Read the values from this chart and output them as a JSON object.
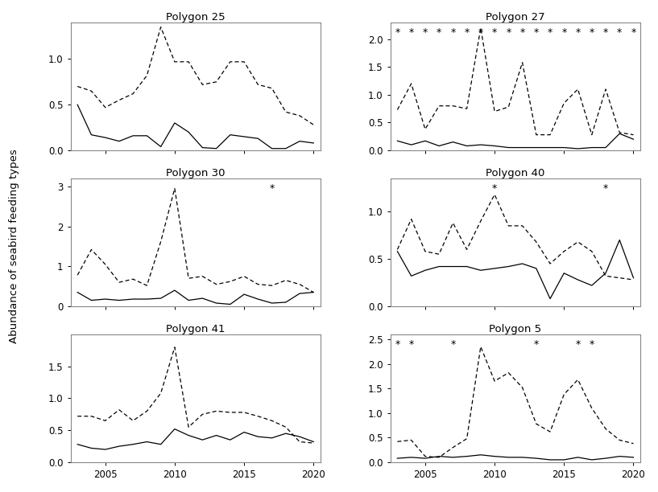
{
  "subplots": [
    {
      "title": "Polygon 25",
      "years": [
        2003,
        2004,
        2005,
        2006,
        2007,
        2008,
        2009,
        2010,
        2011,
        2012,
        2013,
        2014,
        2015,
        2016,
        2017,
        2018,
        2019,
        2020
      ],
      "diving": [
        0.5,
        0.17,
        0.14,
        0.1,
        0.16,
        0.16,
        0.04,
        0.3,
        0.2,
        0.03,
        0.02,
        0.17,
        0.15,
        0.13,
        0.02,
        0.02,
        0.1,
        0.08
      ],
      "surface": [
        0.7,
        0.65,
        0.47,
        0.55,
        0.62,
        0.82,
        1.35,
        0.97,
        0.97,
        0.72,
        0.75,
        0.97,
        0.97,
        0.72,
        0.68,
        0.42,
        0.38,
        0.28
      ],
      "star_years": [],
      "ylim": [
        0,
        1.4
      ],
      "yticks": [
        0.0,
        0.5,
        1.0
      ]
    },
    {
      "title": "Polygon 27",
      "years": [
        2003,
        2004,
        2005,
        2006,
        2007,
        2008,
        2009,
        2010,
        2011,
        2012,
        2013,
        2014,
        2015,
        2016,
        2017,
        2018,
        2019,
        2020
      ],
      "diving": [
        0.17,
        0.1,
        0.17,
        0.08,
        0.15,
        0.08,
        0.1,
        0.08,
        0.05,
        0.05,
        0.05,
        0.05,
        0.05,
        0.03,
        0.05,
        0.05,
        0.3,
        0.2
      ],
      "surface": [
        0.73,
        1.2,
        0.38,
        0.8,
        0.8,
        0.75,
        2.2,
        0.7,
        0.78,
        1.58,
        0.28,
        0.28,
        0.85,
        1.1,
        0.28,
        1.1,
        0.32,
        0.28
      ],
      "star_years": [
        2003,
        2004,
        2005,
        2006,
        2007,
        2008,
        2009,
        2010,
        2011,
        2012,
        2013,
        2014,
        2015,
        2016,
        2017,
        2018,
        2019,
        2020
      ],
      "ylim": [
        0,
        2.3
      ],
      "yticks": [
        0.0,
        0.5,
        1.0,
        1.5,
        2.0
      ]
    },
    {
      "title": "Polygon 30",
      "years": [
        2003,
        2004,
        2005,
        2006,
        2007,
        2008,
        2009,
        2010,
        2011,
        2012,
        2013,
        2014,
        2015,
        2016,
        2017,
        2018,
        2019,
        2020
      ],
      "diving": [
        0.35,
        0.15,
        0.18,
        0.15,
        0.18,
        0.18,
        0.2,
        0.4,
        0.15,
        0.2,
        0.08,
        0.05,
        0.3,
        0.18,
        0.08,
        0.1,
        0.32,
        0.35
      ],
      "surface": [
        0.78,
        1.42,
        1.05,
        0.6,
        0.68,
        0.52,
        1.62,
        2.95,
        0.7,
        0.75,
        0.55,
        0.62,
        0.75,
        0.55,
        0.52,
        0.65,
        0.55,
        0.35
      ],
      "star_years": [
        2017
      ],
      "ylim": [
        0,
        3.2
      ],
      "yticks": [
        0,
        1,
        2,
        3
      ]
    },
    {
      "title": "Polygon 40",
      "years": [
        2003,
        2004,
        2005,
        2006,
        2007,
        2008,
        2009,
        2010,
        2011,
        2012,
        2013,
        2014,
        2015,
        2016,
        2017,
        2018,
        2019,
        2020
      ],
      "diving": [
        0.58,
        0.32,
        0.38,
        0.42,
        0.42,
        0.42,
        0.38,
        0.4,
        0.42,
        0.45,
        0.4,
        0.08,
        0.35,
        0.28,
        0.22,
        0.35,
        0.7,
        0.3
      ],
      "surface": [
        0.6,
        0.92,
        0.58,
        0.55,
        0.88,
        0.6,
        0.9,
        1.18,
        0.85,
        0.85,
        0.68,
        0.45,
        0.58,
        0.68,
        0.58,
        0.32,
        0.3,
        0.28
      ],
      "star_years": [
        2010,
        2018
      ],
      "ylim": [
        0,
        1.35
      ],
      "yticks": [
        0.0,
        0.5,
        1.0
      ]
    },
    {
      "title": "Polygon 41",
      "years": [
        2003,
        2004,
        2005,
        2006,
        2007,
        2008,
        2009,
        2010,
        2011,
        2012,
        2013,
        2014,
        2015,
        2016,
        2017,
        2018,
        2019,
        2020
      ],
      "diving": [
        0.28,
        0.22,
        0.2,
        0.25,
        0.28,
        0.32,
        0.28,
        0.52,
        0.42,
        0.35,
        0.42,
        0.35,
        0.47,
        0.4,
        0.38,
        0.45,
        0.4,
        0.32
      ],
      "surface": [
        0.72,
        0.72,
        0.65,
        0.82,
        0.65,
        0.8,
        1.08,
        1.8,
        0.55,
        0.75,
        0.8,
        0.78,
        0.78,
        0.72,
        0.65,
        0.55,
        0.32,
        0.3
      ],
      "star_years": [],
      "ylim": [
        0,
        2.0
      ],
      "yticks": [
        0.0,
        0.5,
        1.0,
        1.5
      ]
    },
    {
      "title": "Polygon 5",
      "years": [
        2003,
        2004,
        2005,
        2006,
        2007,
        2008,
        2009,
        2010,
        2011,
        2012,
        2013,
        2014,
        2015,
        2016,
        2017,
        2018,
        2019,
        2020
      ],
      "diving": [
        0.08,
        0.1,
        0.08,
        0.12,
        0.1,
        0.12,
        0.15,
        0.12,
        0.1,
        0.1,
        0.08,
        0.05,
        0.05,
        0.1,
        0.05,
        0.08,
        0.12,
        0.1
      ],
      "surface": [
        0.42,
        0.45,
        0.12,
        0.1,
        0.3,
        0.48,
        2.35,
        1.65,
        1.82,
        1.52,
        0.78,
        0.62,
        1.38,
        1.68,
        1.1,
        0.68,
        0.45,
        0.38
      ],
      "star_years": [
        2003,
        2004,
        2007,
        2013,
        2016,
        2017
      ],
      "ylim": [
        0,
        2.6
      ],
      "yticks": [
        0.0,
        0.5,
        1.0,
        1.5,
        2.0,
        2.5
      ]
    }
  ],
  "ylabel": "Abundance of seabird feeding types",
  "xtick_years": [
    2005,
    2010,
    2015,
    2020
  ],
  "xlim_min": 2002.5,
  "xlim_max": 2020.5
}
